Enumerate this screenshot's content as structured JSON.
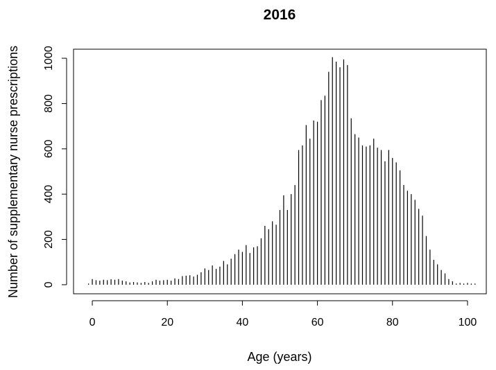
{
  "chart_data": {
    "type": "bar",
    "title": "2016",
    "xlabel": "Age (years)",
    "ylabel": "Number of supplementary nurse prescriptions",
    "xlim": [
      -5,
      105
    ],
    "ylim": [
      -40,
      1040
    ],
    "xticks": [
      0,
      20,
      40,
      60,
      80,
      100
    ],
    "yticks": [
      0,
      200,
      400,
      600,
      800,
      1000
    ],
    "grid": false,
    "legend": "none",
    "bar_color": "#000000",
    "x": [
      -1,
      0,
      1,
      2,
      3,
      4,
      5,
      6,
      7,
      8,
      9,
      10,
      11,
      12,
      13,
      14,
      15,
      16,
      17,
      18,
      19,
      20,
      21,
      22,
      23,
      24,
      25,
      26,
      27,
      28,
      29,
      30,
      31,
      32,
      33,
      34,
      35,
      36,
      37,
      38,
      39,
      40,
      41,
      42,
      43,
      44,
      45,
      46,
      47,
      48,
      49,
      50,
      51,
      52,
      53,
      54,
      55,
      56,
      57,
      58,
      59,
      60,
      61,
      62,
      63,
      64,
      65,
      66,
      67,
      68,
      69,
      70,
      71,
      72,
      73,
      74,
      75,
      76,
      77,
      78,
      79,
      80,
      81,
      82,
      83,
      84,
      85,
      86,
      87,
      88,
      89,
      90,
      91,
      92,
      93,
      94,
      95,
      96,
      97,
      98,
      99,
      100,
      101,
      102
    ],
    "values": [
      5,
      25,
      20,
      18,
      22,
      20,
      24,
      22,
      25,
      18,
      15,
      10,
      12,
      10,
      8,
      12,
      8,
      15,
      22,
      18,
      20,
      22,
      18,
      28,
      25,
      38,
      40,
      42,
      36,
      44,
      55,
      72,
      65,
      85,
      70,
      80,
      105,
      90,
      115,
      135,
      155,
      145,
      175,
      140,
      165,
      170,
      205,
      260,
      245,
      280,
      265,
      330,
      395,
      330,
      400,
      440,
      595,
      615,
      705,
      645,
      725,
      720,
      815,
      835,
      940,
      1005,
      985,
      960,
      995,
      970,
      735,
      665,
      650,
      615,
      610,
      615,
      645,
      605,
      595,
      545,
      595,
      560,
      540,
      505,
      440,
      415,
      400,
      375,
      335,
      305,
      215,
      155,
      110,
      90,
      65,
      50,
      25,
      15,
      5,
      8,
      5,
      8,
      5,
      5
    ]
  }
}
